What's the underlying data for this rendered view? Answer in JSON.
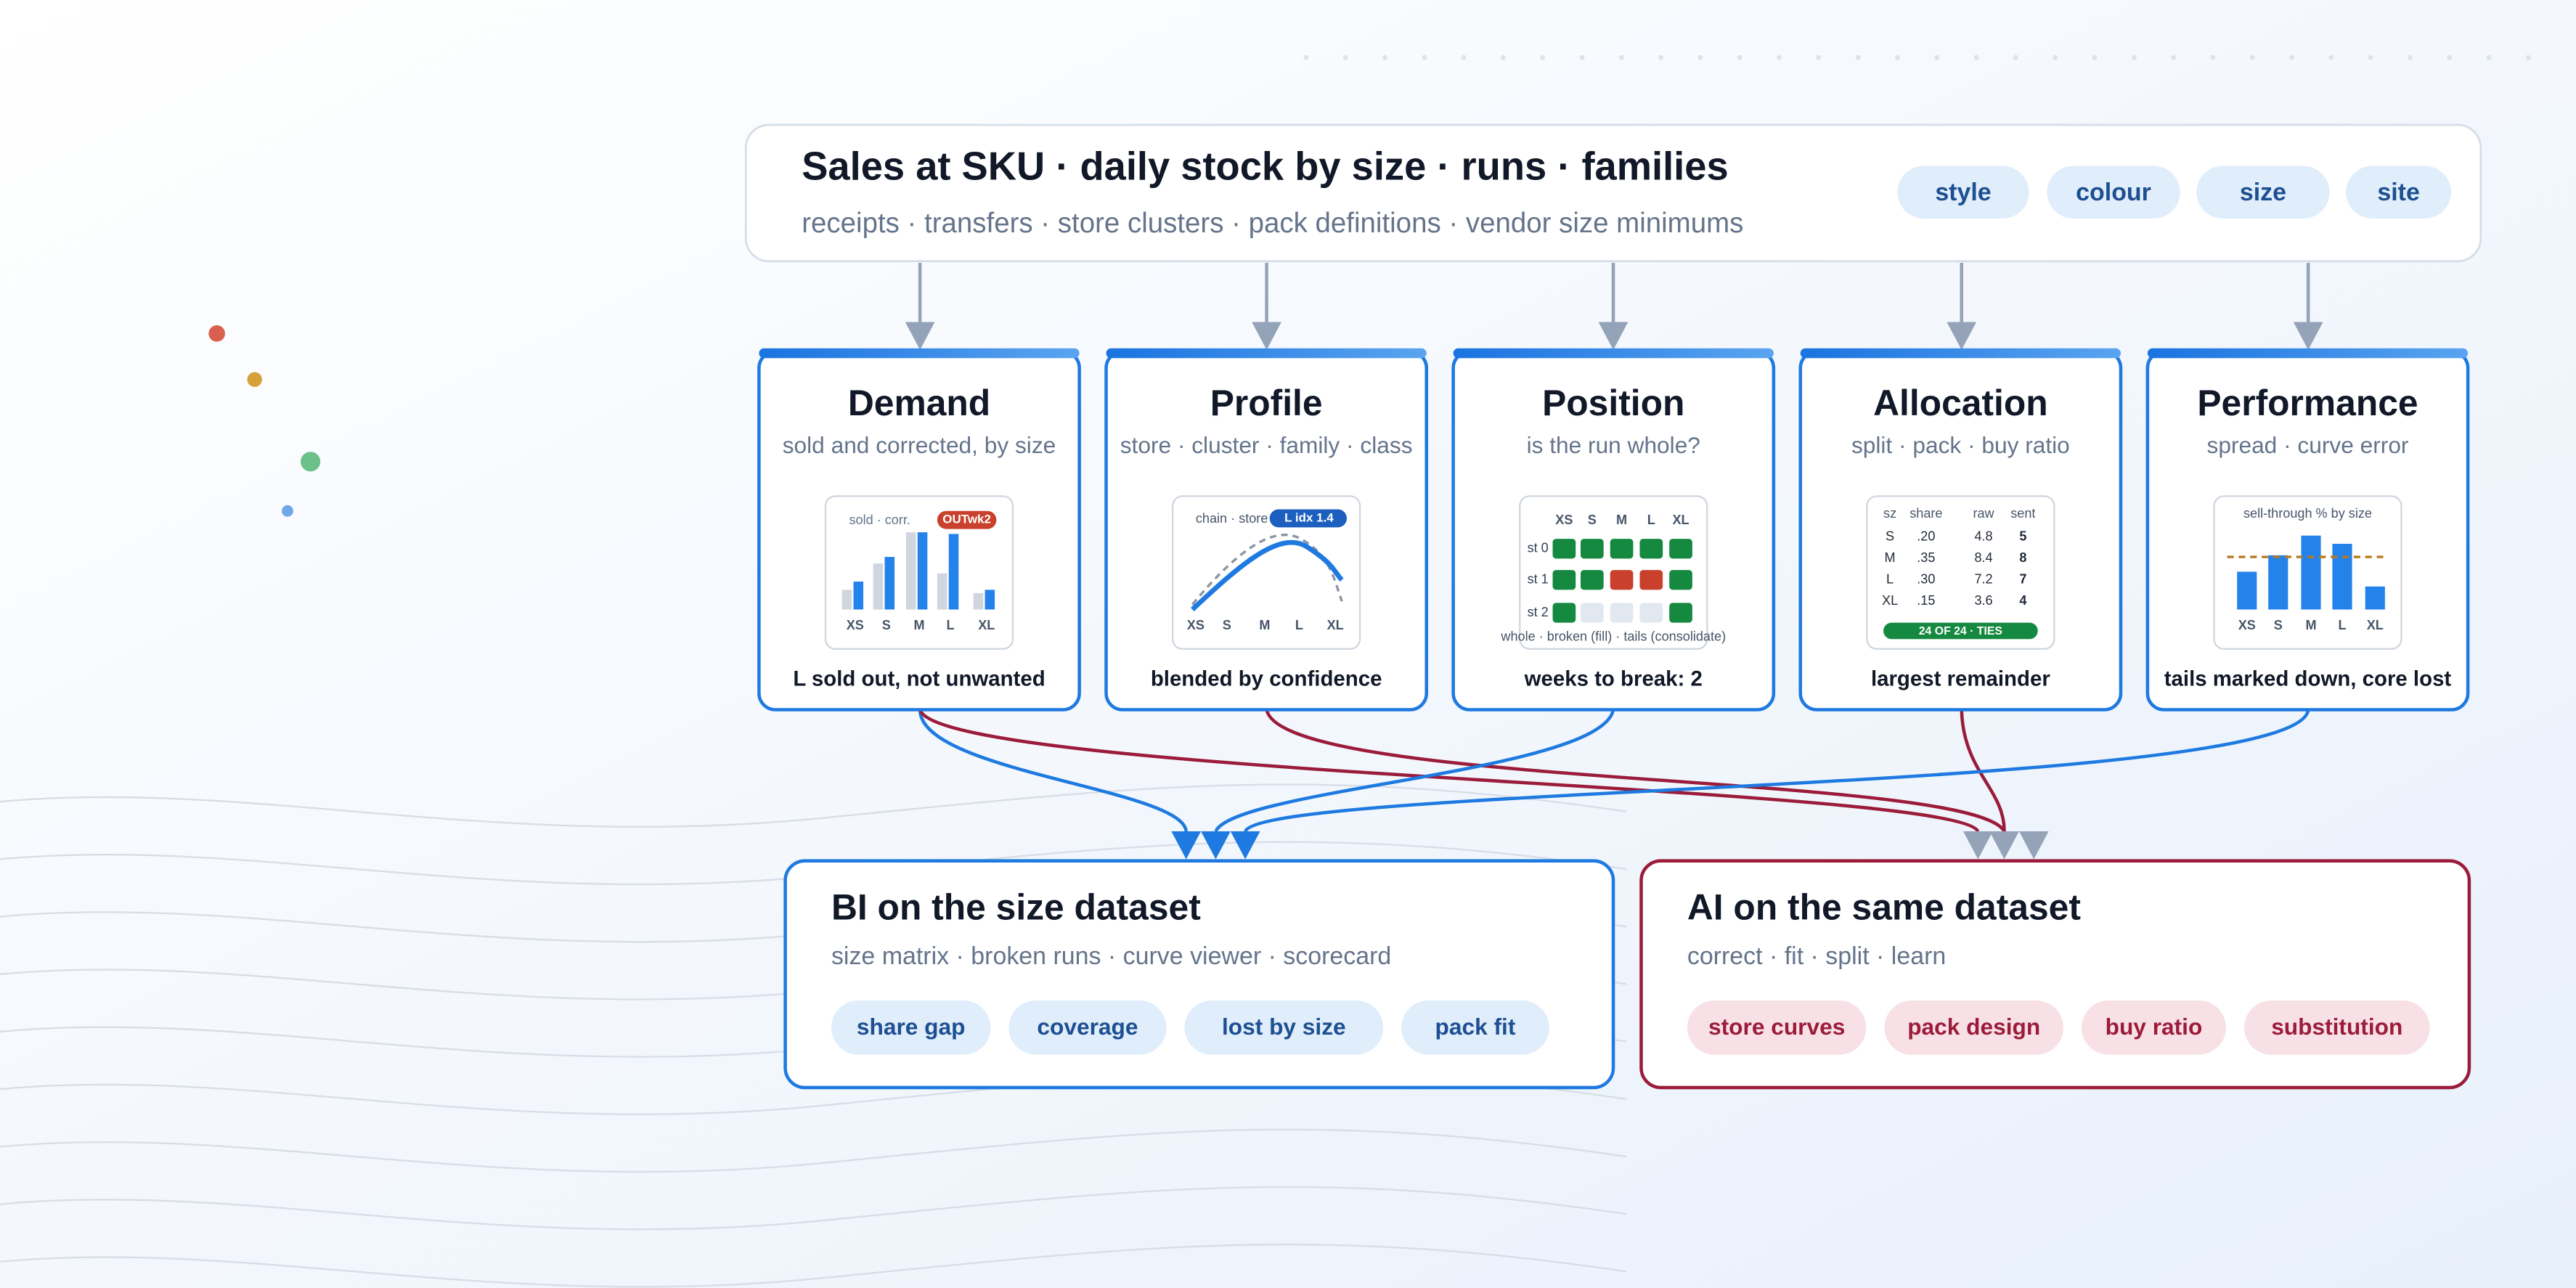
{
  "header": {
    "title": "Sales at SKU · daily stock by size · runs · families",
    "subtitle": "receipts · transfers · store clusters · pack definitions · vendor size minimums",
    "tags": [
      "style",
      "colour",
      "size",
      "site"
    ]
  },
  "cards": [
    {
      "title": "Demand",
      "subtitle": "sold and corrected, by size",
      "footer": "L sold out, not unwanted",
      "chart": {
        "label": "sold · corr.",
        "badge": "OUTwk2",
        "sizes": [
          "XS",
          "S",
          "M",
          "L",
          "XL"
        ]
      }
    },
    {
      "title": "Profile",
      "subtitle": "store · cluster · family · class",
      "footer": "blended by confidence",
      "chart": {
        "label": "chain · store",
        "badge": "L idx 1.4",
        "sizes": [
          "XS",
          "S",
          "M",
          "L",
          "XL"
        ]
      }
    },
    {
      "title": "Position",
      "subtitle": "is the run whole?",
      "footer": "weeks to break: 2",
      "chart": {
        "sizes": [
          "XS",
          "S",
          "M",
          "L",
          "XL"
        ],
        "rows": [
          "st 0",
          "st 1",
          "st 2"
        ],
        "caption": "whole · broken (fill) · tails (consolidate)"
      }
    },
    {
      "title": "Allocation",
      "subtitle": "split · pack · buy ratio",
      "footer": "largest remainder",
      "chart": {
        "columns": [
          "sz",
          "share",
          "raw",
          "sent"
        ],
        "rows": [
          [
            "S",
            ".20",
            "4.8",
            "5"
          ],
          [
            "M",
            ".35",
            "8.4",
            "8"
          ],
          [
            "L",
            ".30",
            "7.2",
            "7"
          ],
          [
            "XL",
            ".15",
            "3.6",
            "4"
          ]
        ],
        "badge": "24 OF 24 · TIES"
      }
    },
    {
      "title": "Performance",
      "subtitle": "spread · curve error",
      "footer": "tails marked down, core lost",
      "chart": {
        "label": "sell-through % by size",
        "sizes": [
          "XS",
          "S",
          "M",
          "L",
          "XL"
        ]
      }
    }
  ],
  "panels": [
    {
      "title": "BI on the size dataset",
      "subtitle": "size matrix · broken runs · curve viewer · scorecard",
      "chips": [
        "share gap",
        "coverage",
        "lost by size",
        "pack fit"
      ]
    },
    {
      "title": "AI on the same dataset",
      "subtitle": "correct · fit · split · learn",
      "chips": [
        "store curves",
        "pack design",
        "buy ratio",
        "substitution"
      ]
    }
  ]
}
